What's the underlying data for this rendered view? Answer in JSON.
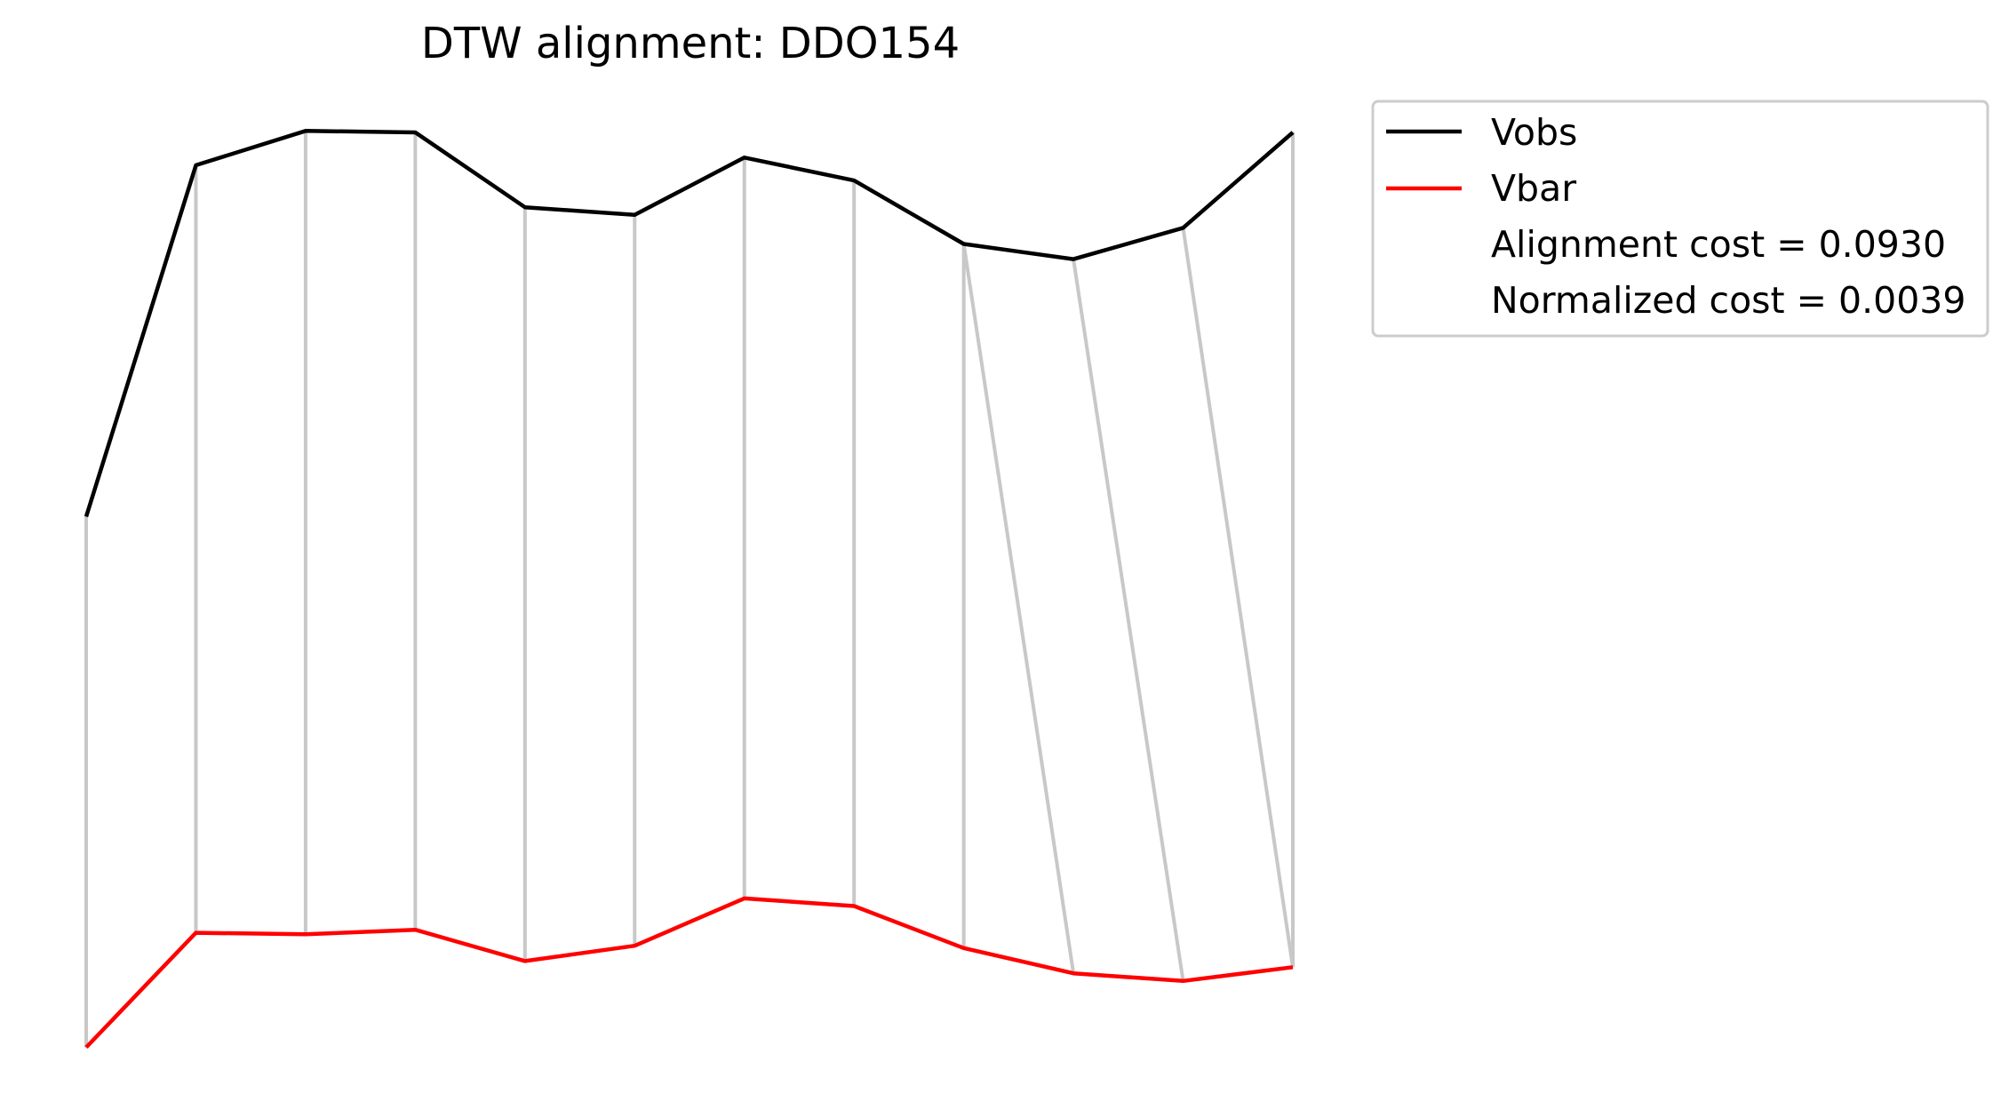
{
  "chart_data": {
    "type": "line",
    "title": "DTW alignment: DDO154",
    "xlabel": "",
    "ylabel": "",
    "axes_visible": false,
    "grid": false,
    "legend_position": "upper-right-outside",
    "series": [
      {
        "name": "Vobs",
        "color": "#000000",
        "values": [
          0.5,
          0.96,
          1.005,
          1.003,
          0.905,
          0.895,
          0.97,
          0.94,
          0.857,
          0.837,
          0.878,
          1.003
        ]
      },
      {
        "name": "Vbar",
        "color": "#ff0000",
        "values": [
          -0.195,
          -0.045,
          -0.047,
          -0.041,
          -0.082,
          -0.062,
          -0.0,
          -0.01,
          -0.065,
          -0.098,
          -0.108,
          -0.09
        ]
      }
    ],
    "alignment_color": "#c8c8c8",
    "alignment_pairs": [
      [
        0,
        0
      ],
      [
        1,
        1
      ],
      [
        2,
        2
      ],
      [
        3,
        3
      ],
      [
        4,
        4
      ],
      [
        5,
        5
      ],
      [
        6,
        6
      ],
      [
        7,
        7
      ],
      [
        8,
        8
      ],
      [
        8,
        9
      ],
      [
        9,
        10
      ],
      [
        10,
        11
      ],
      [
        11,
        11
      ]
    ],
    "ylim": [
      -0.22,
      1.06
    ],
    "legend_extra": [
      "Alignment cost = 0.0930",
      "Normalized cost = 0.0039"
    ]
  }
}
